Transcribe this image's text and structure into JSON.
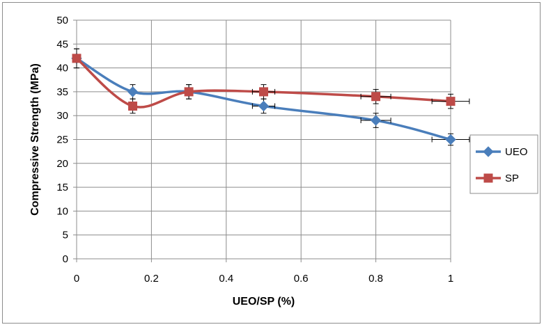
{
  "chart_data": {
    "type": "line",
    "title": "",
    "xlabel": "UEO/SP (%)",
    "ylabel": "Compressive Strength (MPa)",
    "xlim": [
      0,
      1
    ],
    "ylim": [
      0,
      50
    ],
    "x_ticks": [
      "0",
      "0.2",
      "0.4",
      "0.6",
      "0.8",
      "1"
    ],
    "y_ticks": [
      "0",
      "5",
      "10",
      "15",
      "20",
      "25",
      "30",
      "35",
      "40",
      "45",
      "50"
    ],
    "grid": true,
    "legend_position": "right",
    "series": [
      {
        "name": "UEO",
        "color": "#4a7ebb",
        "marker": "diamond",
        "smooth": true,
        "x": [
          0,
          0.15,
          0.3,
          0.5,
          0.8,
          1
        ],
        "y": [
          42,
          35,
          35,
          32,
          29,
          25
        ],
        "error_y": [
          2,
          1.5,
          1.5,
          1.5,
          1.5,
          1.2
        ],
        "error_x": [
          0,
          0,
          0,
          0.03,
          0.04,
          0.05
        ]
      },
      {
        "name": "SP",
        "color": "#be4b48",
        "marker": "square",
        "smooth": true,
        "x": [
          0,
          0.15,
          0.3,
          0.5,
          0.8,
          1
        ],
        "y": [
          42,
          32,
          35,
          35,
          34,
          33
        ],
        "error_y": [
          2,
          1.5,
          1.5,
          1.5,
          1.5,
          1.5
        ],
        "error_x": [
          0,
          0,
          0,
          0.03,
          0.04,
          0.05
        ]
      }
    ]
  }
}
